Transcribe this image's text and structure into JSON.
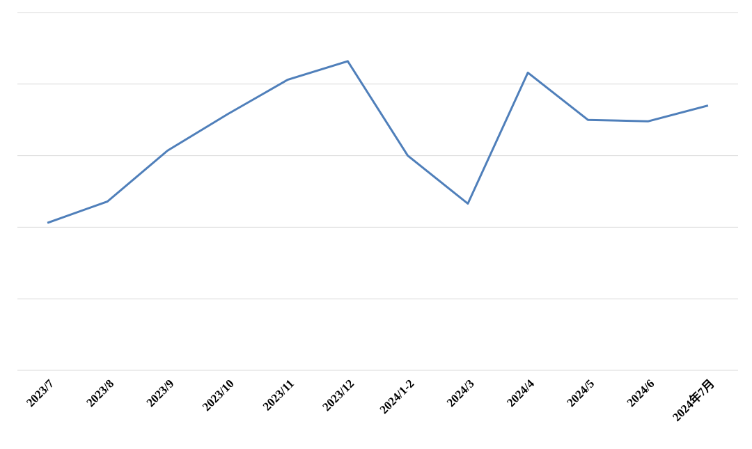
{
  "chart_data": {
    "type": "line",
    "categories": [
      "2023/7",
      "2023/8",
      "2023/9",
      "2023/10",
      "2023/11",
      "2023/12",
      "2024/1-2",
      "2024/3",
      "2024/4",
      "2024/5",
      "2024/6",
      "2024年7月"
    ],
    "values": [
      2.06,
      2.36,
      3.07,
      3.58,
      4.06,
      4.32,
      3.0,
      2.33,
      4.16,
      3.5,
      3.48,
      3.7
    ],
    "color": "#4f7fba",
    "ylim": [
      0,
      5
    ],
    "ygrid": [
      0,
      1,
      2,
      3,
      4,
      5
    ]
  }
}
